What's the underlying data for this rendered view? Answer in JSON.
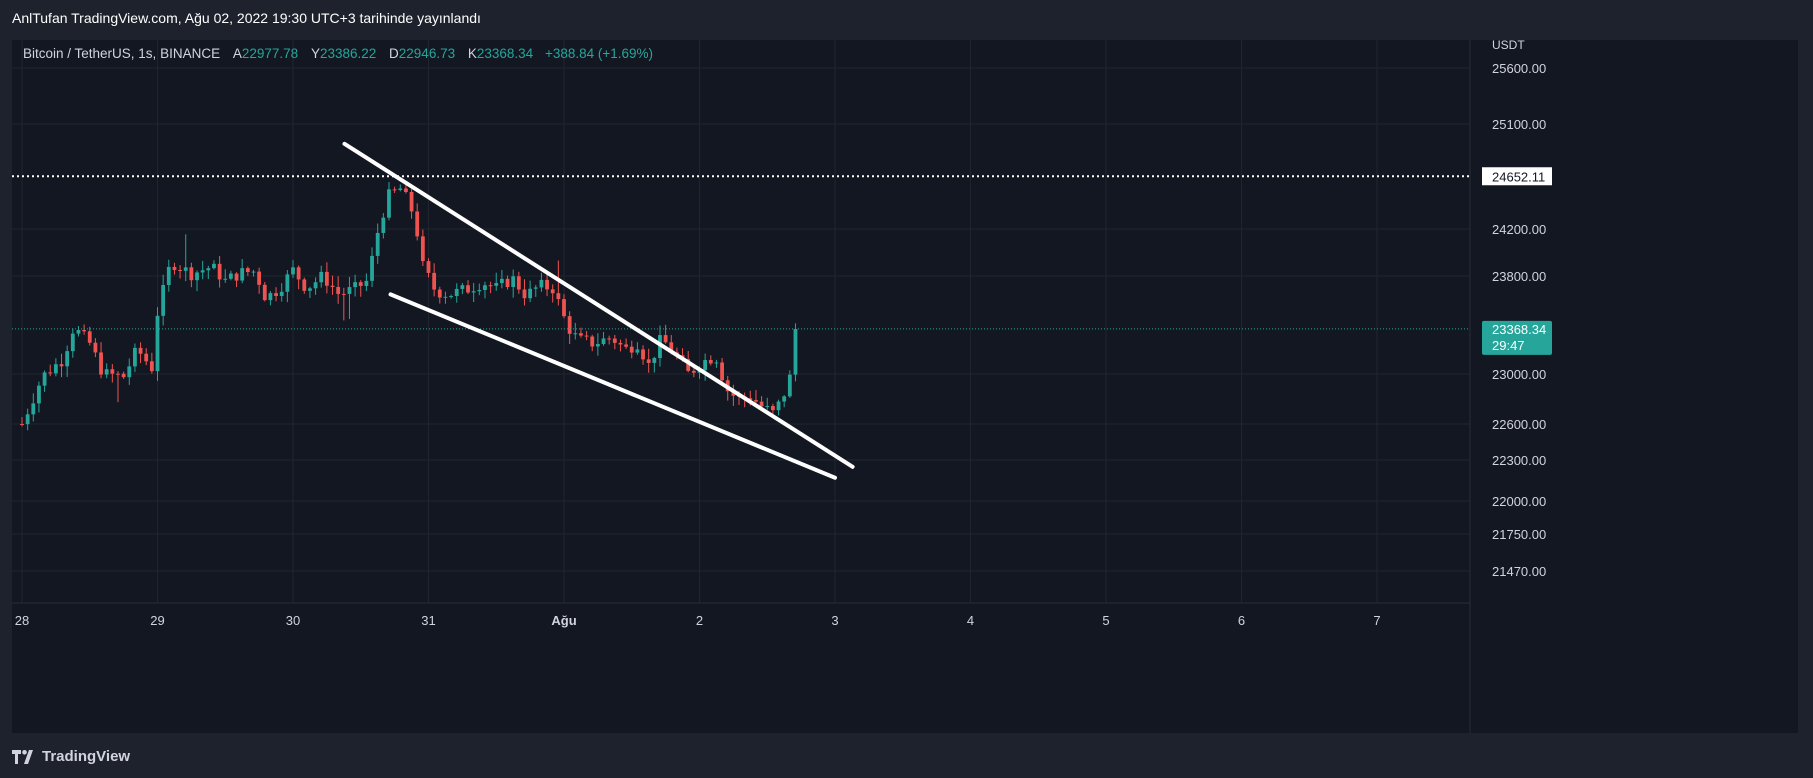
{
  "header": {
    "published_text": "AnlTufan TradingView.com, Ağu 02, 2022 19:30 UTC+3 tarihinde yayınlandı"
  },
  "legend": {
    "symbol": "Bitcoin / TetherUS, 1s, BINANCE",
    "open_label": "A",
    "open_value": "22977.78",
    "high_label": "Y",
    "high_value": "23386.22",
    "low_label": "D",
    "low_value": "22946.73",
    "close_label": "K",
    "close_value": "23368.34",
    "change": "+388.84 (+1.69%)"
  },
  "price_axis": {
    "currency": "USDT",
    "ticks": [
      "25600.00",
      "25100.00",
      "24200.00",
      "23800.00",
      "23000.00",
      "22600.00",
      "22300.00",
      "22000.00",
      "21750.00",
      "21470.00"
    ],
    "marker_value": "24652.11",
    "last_price": "23368.34",
    "countdown": "29:47"
  },
  "time_axis": {
    "ticks": [
      "28",
      "29",
      "30",
      "31",
      "Ağu",
      "2",
      "3",
      "4",
      "5",
      "6",
      "7"
    ]
  },
  "footer": {
    "brand": "TradingView"
  },
  "colors": {
    "up": "#26a69a",
    "down": "#ef5350",
    "trendline": "#ffffff",
    "background": "#131722"
  },
  "chart_data": {
    "type": "candlestick",
    "symbol": "Bitcoin / TetherUS",
    "interval": "1s",
    "exchange": "BINANCE",
    "price_axis_ticks": [
      25600,
      25100,
      24200,
      23800,
      23000,
      22600,
      22300,
      22000,
      21750,
      21470
    ],
    "x_ticks": [
      "28",
      "29",
      "30",
      "31",
      "Ağu",
      "2",
      "3",
      "4",
      "5",
      "6",
      "7"
    ],
    "horizontal_level": 24652.11,
    "last_price": 23368.34,
    "trendlines": [
      {
        "from": {
          "day": 30.38,
          "price": 24930
        },
        "to": {
          "day": 34.13,
          "price": 22250
        }
      },
      {
        "from": {
          "day": 30.72,
          "price": 23650
        },
        "to": {
          "day": 34.0,
          "price": 22170
        }
      }
    ],
    "candles_pattern": "downtrend wedge from ~24600 high on Jul 30 to ~22700 on Aug 2 then breakout to 23368"
  }
}
